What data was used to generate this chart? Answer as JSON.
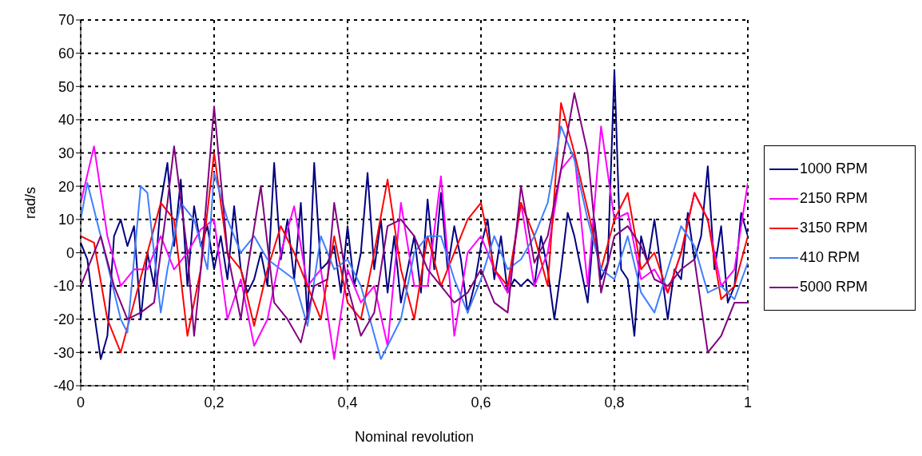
{
  "chart_data": {
    "type": "line",
    "xlabel": "Nominal revolution",
    "ylabel": "rad/s",
    "xlim": [
      0,
      1
    ],
    "xticks": [
      0,
      {
        "value": 0.2,
        "label": "0,2"
      },
      {
        "value": 0.4,
        "label": "0,4"
      },
      {
        "value": 0.6,
        "label": "0,6"
      },
      {
        "value": 0.8,
        "label": "0,8"
      },
      1
    ],
    "ylim": [
      -40,
      70
    ],
    "yticks": [
      -40,
      -30,
      -20,
      -10,
      0,
      10,
      20,
      30,
      40,
      50,
      60,
      70
    ],
    "grid": true,
    "legend": "right",
    "marker": "none",
    "line_style": "solid",
    "series": [
      {
        "name": "1000 RPM",
        "color": "#000080",
        "x": [
          0,
          0.01,
          0.02,
          0.03,
          0.04,
          0.05,
          0.06,
          0.07,
          0.08,
          0.09,
          0.1,
          0.11,
          0.12,
          0.13,
          0.14,
          0.15,
          0.16,
          0.17,
          0.18,
          0.19,
          0.2,
          0.21,
          0.22,
          0.23,
          0.24,
          0.25,
          0.26,
          0.27,
          0.28,
          0.29,
          0.3,
          0.31,
          0.32,
          0.33,
          0.34,
          0.35,
          0.36,
          0.37,
          0.38,
          0.39,
          0.4,
          0.41,
          0.42,
          0.43,
          0.44,
          0.45,
          0.46,
          0.47,
          0.48,
          0.49,
          0.5,
          0.51,
          0.52,
          0.53,
          0.54,
          0.55,
          0.56,
          0.57,
          0.58,
          0.59,
          0.6,
          0.61,
          0.62,
          0.63,
          0.64,
          0.65,
          0.66,
          0.67,
          0.68,
          0.69,
          0.7,
          0.71,
          0.72,
          0.73,
          0.74,
          0.75,
          0.76,
          0.77,
          0.78,
          0.79,
          0.8,
          0.81,
          0.82,
          0.83,
          0.84,
          0.85,
          0.86,
          0.87,
          0.88,
          0.89,
          0.9,
          0.91,
          0.92,
          0.93,
          0.94,
          0.95,
          0.96,
          0.97,
          0.98,
          0.99,
          1
        ],
        "values": [
          3,
          -2,
          -18,
          -32,
          -25,
          5,
          10,
          2,
          8,
          -20,
          0,
          -10,
          15,
          27,
          2,
          22,
          -10,
          14,
          2,
          8,
          -5,
          5,
          -8,
          14,
          -5,
          -12,
          -8,
          0,
          -10,
          27,
          -2,
          10,
          -8,
          15,
          -20,
          27,
          -5,
          -3,
          2,
          -12,
          8,
          -10,
          0,
          24,
          -5,
          10,
          -12,
          5,
          -15,
          -5,
          5,
          -12,
          16,
          -5,
          18,
          -5,
          8,
          -2,
          -18,
          -10,
          2,
          10,
          -8,
          5,
          -12,
          -8,
          -10,
          -8,
          -10,
          5,
          -5,
          -20,
          -5,
          12,
          5,
          -5,
          -15,
          10,
          -8,
          -3,
          55,
          -5,
          -8,
          -25,
          5,
          -3,
          10,
          -5,
          -20,
          -5,
          -8,
          12,
          -2,
          5,
          26,
          -5,
          8,
          -15,
          -10,
          12,
          5
        ]
      },
      {
        "name": "2150 RPM",
        "color": "#ff00ff",
        "x": [
          0,
          0.02,
          0.04,
          0.06,
          0.08,
          0.1,
          0.12,
          0.14,
          0.16,
          0.18,
          0.2,
          0.22,
          0.24,
          0.26,
          0.28,
          0.3,
          0.32,
          0.34,
          0.36,
          0.38,
          0.4,
          0.42,
          0.44,
          0.46,
          0.48,
          0.5,
          0.52,
          0.54,
          0.56,
          0.58,
          0.6,
          0.62,
          0.64,
          0.66,
          0.68,
          0.7,
          0.72,
          0.74,
          0.76,
          0.78,
          0.8,
          0.82,
          0.84,
          0.86,
          0.88,
          0.9,
          0.92,
          0.94,
          0.96,
          0.98,
          1
        ],
        "values": [
          15,
          32,
          5,
          -10,
          -5,
          -5,
          5,
          -5,
          0,
          7,
          10,
          -20,
          -8,
          -28,
          -20,
          0,
          14,
          -10,
          -5,
          -32,
          -5,
          -15,
          -10,
          -28,
          15,
          -10,
          -10,
          23,
          -25,
          0,
          5,
          -5,
          -12,
          15,
          -10,
          0,
          25,
          30,
          -10,
          38,
          10,
          12,
          -8,
          -5,
          -12,
          0,
          18,
          10,
          -10,
          -5,
          21
        ]
      },
      {
        "name": "3150 RPM",
        "color": "#ff0000",
        "x": [
          0,
          0.02,
          0.04,
          0.06,
          0.08,
          0.1,
          0.12,
          0.14,
          0.16,
          0.18,
          0.2,
          0.22,
          0.24,
          0.26,
          0.28,
          0.3,
          0.32,
          0.34,
          0.36,
          0.38,
          0.4,
          0.42,
          0.44,
          0.46,
          0.48,
          0.5,
          0.52,
          0.54,
          0.56,
          0.58,
          0.6,
          0.62,
          0.64,
          0.66,
          0.68,
          0.7,
          0.72,
          0.74,
          0.76,
          0.78,
          0.8,
          0.82,
          0.84,
          0.86,
          0.88,
          0.9,
          0.92,
          0.94,
          0.96,
          0.98,
          1
        ],
        "values": [
          5,
          3,
          -20,
          -30,
          -15,
          0,
          15,
          10,
          -25,
          -5,
          30,
          0,
          -5,
          -22,
          -5,
          8,
          0,
          -10,
          -20,
          5,
          -15,
          -20,
          0,
          22,
          -5,
          -20,
          5,
          -10,
          0,
          10,
          15,
          -5,
          -10,
          15,
          5,
          -10,
          45,
          30,
          13,
          -5,
          10,
          18,
          -5,
          0,
          -12,
          0,
          18,
          10,
          -14,
          -10,
          5
        ]
      },
      {
        "name": "410 RPM",
        "color": "#3f7fff",
        "x": [
          0,
          0.01,
          0.03,
          0.06,
          0.07,
          0.09,
          0.1,
          0.12,
          0.13,
          0.15,
          0.17,
          0.19,
          0.2,
          0.22,
          0.24,
          0.26,
          0.28,
          0.3,
          0.32,
          0.34,
          0.36,
          0.38,
          0.4,
          0.42,
          0.45,
          0.48,
          0.5,
          0.52,
          0.54,
          0.56,
          0.58,
          0.6,
          0.62,
          0.64,
          0.66,
          0.68,
          0.7,
          0.72,
          0.74,
          0.76,
          0.78,
          0.8,
          0.82,
          0.84,
          0.86,
          0.88,
          0.9,
          0.92,
          0.94,
          0.96,
          0.98,
          1
        ],
        "values": [
          10,
          21,
          5,
          -20,
          -24,
          20,
          18,
          -18,
          -5,
          15,
          10,
          -5,
          24,
          10,
          0,
          5,
          -2,
          -5,
          -8,
          -22,
          5,
          -5,
          -2,
          -10,
          -32,
          -20,
          0,
          5,
          5,
          -8,
          -18,
          -8,
          5,
          -5,
          -2,
          5,
          15,
          38,
          28,
          10,
          -5,
          -8,
          5,
          -12,
          -18,
          -5,
          8,
          2,
          -12,
          -10,
          -14,
          -3
        ]
      },
      {
        "name": "5000 RPM",
        "color": "#800080",
        "x": [
          0,
          0.02,
          0.03,
          0.05,
          0.07,
          0.09,
          0.11,
          0.13,
          0.14,
          0.16,
          0.17,
          0.18,
          0.2,
          0.22,
          0.24,
          0.25,
          0.27,
          0.29,
          0.31,
          0.33,
          0.35,
          0.37,
          0.38,
          0.4,
          0.42,
          0.44,
          0.46,
          0.48,
          0.5,
          0.52,
          0.54,
          0.56,
          0.58,
          0.6,
          0.62,
          0.64,
          0.66,
          0.68,
          0.7,
          0.72,
          0.74,
          0.76,
          0.78,
          0.8,
          0.82,
          0.84,
          0.86,
          0.88,
          0.9,
          0.92,
          0.94,
          0.96,
          0.98,
          1
        ],
        "values": [
          -10,
          0,
          5,
          -10,
          -20,
          -18,
          -15,
          15,
          32,
          0,
          -25,
          -5,
          44,
          0,
          -20,
          -5,
          20,
          -15,
          -20,
          -27,
          -10,
          -8,
          15,
          -10,
          -25,
          -18,
          8,
          10,
          5,
          -5,
          -10,
          -15,
          -12,
          -5,
          -15,
          -18,
          20,
          -3,
          5,
          25,
          48,
          30,
          -12,
          5,
          8,
          2,
          -8,
          -10,
          -5,
          -2,
          -30,
          -25,
          -15,
          -15
        ]
      }
    ]
  }
}
